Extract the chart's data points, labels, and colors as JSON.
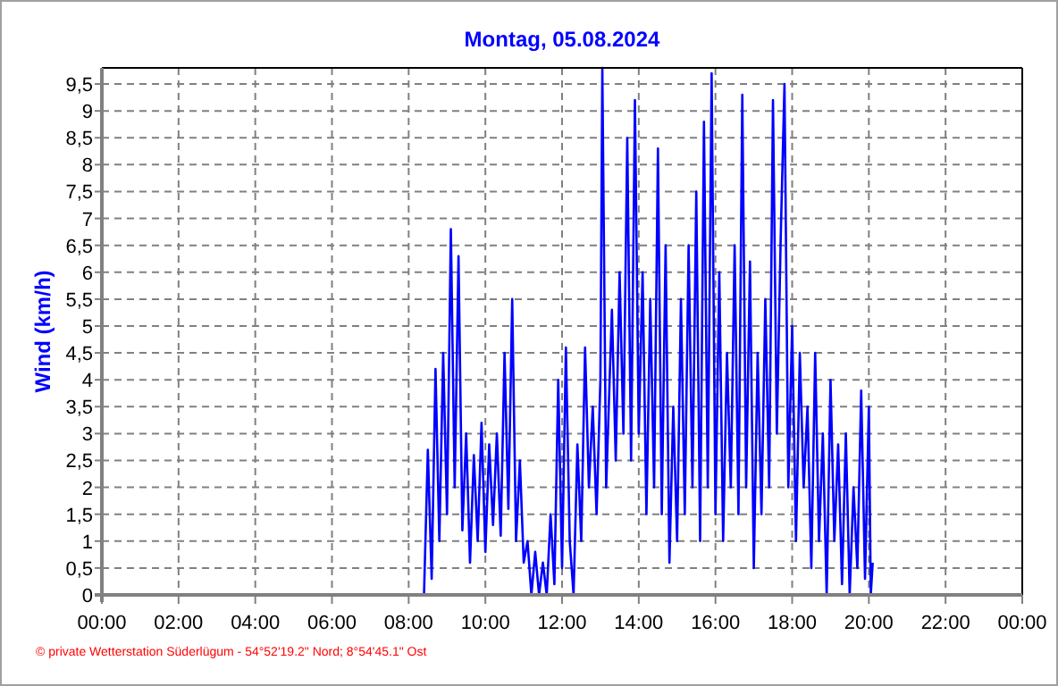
{
  "chart_data": {
    "type": "line",
    "title": "Montag, 05.08.2024",
    "ylabel": "Wind  (km/h)",
    "annotations": [
      "© private Wetterstation Süderlügum  -  54°52'19.2\" Nord; 8°54'45.1\" Ost"
    ],
    "xlim": [
      0,
      24
    ],
    "ylim": [
      0,
      9.8
    ],
    "xticks": [
      {
        "value": 0,
        "label": "00:00"
      },
      {
        "value": 2,
        "label": "02:00"
      },
      {
        "value": 4,
        "label": "04:00"
      },
      {
        "value": 6,
        "label": "06:00"
      },
      {
        "value": 8,
        "label": "08:00"
      },
      {
        "value": 10,
        "label": "10:00"
      },
      {
        "value": 12,
        "label": "12:00"
      },
      {
        "value": 14,
        "label": "14:00"
      },
      {
        "value": 16,
        "label": "16:00"
      },
      {
        "value": 18,
        "label": "18:00"
      },
      {
        "value": 20,
        "label": "20:00"
      },
      {
        "value": 22,
        "label": "22:00"
      },
      {
        "value": 24,
        "label": "00:00"
      }
    ],
    "yticks": [
      0,
      {
        "value": 0.5,
        "label": "0,5"
      },
      1,
      {
        "value": 1.5,
        "label": "1,5"
      },
      2,
      {
        "value": 2.5,
        "label": "2,5"
      },
      3,
      {
        "value": 3.5,
        "label": "3,5"
      },
      4,
      {
        "value": 4.5,
        "label": "4,5"
      },
      5,
      {
        "value": 5.5,
        "label": "5,5"
      },
      6,
      {
        "value": 6.5,
        "label": "6,5"
      },
      7,
      {
        "value": 7.5,
        "label": "7,5"
      },
      8,
      {
        "value": 8.5,
        "label": "8,5"
      },
      9,
      {
        "value": 9.5,
        "label": "9,5"
      }
    ],
    "grid": true,
    "series": [
      {
        "color": "#0000ff",
        "x": [
          0,
          8.3,
          8.4,
          8.5,
          8.6,
          8.7,
          8.8,
          8.9,
          9.0,
          9.1,
          9.2,
          9.3,
          9.4,
          9.5,
          9.6,
          9.7,
          9.8,
          9.9,
          10.0,
          10.1,
          10.2,
          10.3,
          10.4,
          10.5,
          10.6,
          10.7,
          10.8,
          10.9,
          11.0,
          11.1,
          11.2,
          11.3,
          11.4,
          11.5,
          11.6,
          11.7,
          11.8,
          11.9,
          12.0,
          12.1,
          12.2,
          12.3,
          12.4,
          12.5,
          12.6,
          12.7,
          12.8,
          12.9,
          13.0,
          13.05,
          13.15,
          13.3,
          13.4,
          13.5,
          13.6,
          13.7,
          13.8,
          13.9,
          14.0,
          14.1,
          14.2,
          14.3,
          14.4,
          14.5,
          14.6,
          14.7,
          14.8,
          14.9,
          15.0,
          15.1,
          15.2,
          15.3,
          15.4,
          15.5,
          15.6,
          15.7,
          15.8,
          15.9,
          16.0,
          16.1,
          16.2,
          16.3,
          16.4,
          16.5,
          16.6,
          16.7,
          16.8,
          16.9,
          17.0,
          17.1,
          17.2,
          17.3,
          17.4,
          17.5,
          17.6,
          17.7,
          17.8,
          17.9,
          18.0,
          18.1,
          18.2,
          18.3,
          18.4,
          18.5,
          18.6,
          18.7,
          18.8,
          18.9,
          19.0,
          19.1,
          19.2,
          19.3,
          19.4,
          19.5,
          19.6,
          19.7,
          19.8,
          19.9,
          20.0,
          20.05,
          20.1
        ],
        "values": [
          0,
          0,
          0,
          2.7,
          0.3,
          4.2,
          1.0,
          4.5,
          1.5,
          6.8,
          2.0,
          6.3,
          1.2,
          3.0,
          0.6,
          2.6,
          1.0,
          3.2,
          0.8,
          2.8,
          1.3,
          3.0,
          1.1,
          4.5,
          1.6,
          5.5,
          1.0,
          2.5,
          0.6,
          1.0,
          0,
          0.8,
          0,
          0.6,
          0,
          1.5,
          0.2,
          4.0,
          0.5,
          4.6,
          1.0,
          0,
          2.8,
          1.0,
          4.6,
          2.0,
          3.5,
          1.5,
          4.0,
          9.8,
          2.0,
          5.3,
          2.5,
          6.0,
          3.0,
          8.5,
          2.5,
          9.2,
          3.0,
          6.0,
          1.5,
          5.5,
          2.0,
          8.3,
          1.5,
          6.5,
          0.6,
          3.5,
          1.0,
          5.5,
          1.5,
          6.5,
          2.0,
          7.5,
          1.0,
          8.8,
          2.0,
          9.7,
          1.5,
          6.0,
          1.0,
          4.5,
          2.0,
          6.5,
          1.5,
          9.3,
          2.0,
          6.2,
          0.5,
          4.5,
          1.5,
          5.5,
          2.0,
          9.2,
          3.0,
          6.6,
          9.5,
          2.0,
          5.0,
          1.0,
          4.5,
          2.0,
          3.5,
          0.5,
          4.5,
          1.0,
          3.0,
          0,
          4.0,
          1.0,
          2.8,
          0.2,
          3.0,
          0,
          2.0,
          0.5,
          3.8,
          0.3,
          3.5,
          0,
          0.6
        ]
      }
    ]
  }
}
